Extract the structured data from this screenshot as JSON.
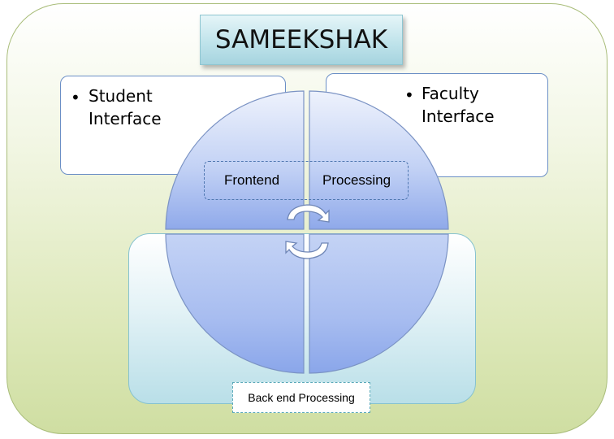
{
  "title": "SAMEEKSHAK",
  "student_interface": {
    "bullet": "•",
    "text": "Student\nInterface"
  },
  "faculty_interface": {
    "bullet": "•",
    "text": "Faculty\nInterface"
  },
  "quadrants": {
    "top_left": "Frontend",
    "top_right": "Processing"
  },
  "backend_label": "Back end Processing",
  "colors": {
    "frame_fill": "#e3ecc6",
    "title_fill": "#bde2ea",
    "quadrant_fill": "#9fb7ee",
    "backend_fill": "#cde9ef"
  },
  "icons": [
    "cycle-arrow-icon",
    "cycle-arrow-icon"
  ]
}
